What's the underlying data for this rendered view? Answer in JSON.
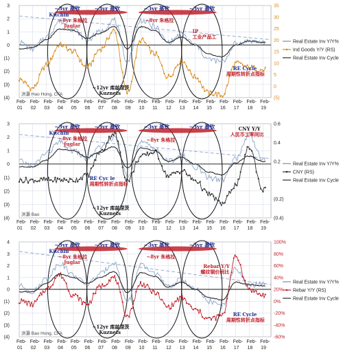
{
  "x_months": [
    "Feb-",
    "Feb-",
    "Feb-",
    "Feb-",
    "Feb-",
    "Feb-",
    "Feb-",
    "Feb-",
    "Feb-",
    "Feb-",
    "Feb-",
    "Feb-",
    "Feb-",
    "Feb-",
    "Feb-",
    "Feb-",
    "Feb-",
    "Feb-",
    "Feb-"
  ],
  "x_years": [
    "01",
    "02",
    "03",
    "04",
    "05",
    "06",
    "07",
    "08",
    "09",
    "10",
    "11",
    "12",
    "13",
    "14",
    "15",
    "16",
    "17",
    "18",
    "19"
  ],
  "colors": {
    "grey": "#6f8fb8",
    "dark": "#2a2a2a",
    "orange": "#d88a1a",
    "red": "#c0202a",
    "dash": "#9aaad0"
  },
  "chart_data": [
    {
      "type": "line",
      "x": [
        2001,
        2002,
        2003,
        2004,
        2005,
        2006,
        2007,
        2008,
        2009,
        2010,
        2011,
        2012,
        2013,
        2014,
        2015,
        2016,
        2017,
        2018,
        2019
      ],
      "yleft": [
        -4,
        -3,
        -2,
        -1,
        0,
        1,
        2,
        3
      ],
      "yleft_labels": [
        "(4)",
        "(3)",
        "(2)",
        "(1)",
        "0",
        "1",
        "2",
        "3"
      ],
      "yright": [
        -5,
        0,
        5,
        10,
        15,
        20,
        25,
        30,
        35
      ],
      "yright_labels": [
        "(5)",
        "0",
        "5",
        "10",
        "15",
        "20",
        "25",
        "30",
        "35"
      ],
      "credit": "洪灝 Hao Hong, CFA",
      "legend": [
        "Real Estate Inv Y/Y%",
        "Ind Goods Y/Y (RS)",
        "Real Estate Inv Cycle"
      ],
      "cycle_labels": [
        "~3yr 基钦",
        "~3yr 基钦",
        "~3yr 基钦",
        "~3yr 基钦"
      ],
      "annotations": {
        "kitchin": "Kitchin",
        "juglar_cn": "~8yr 朱格拉",
        "juglar": "Juglar",
        "kuznets_cn": "~12yr 库兹涅茨",
        "kuznets": "Kuznets",
        "ip_cn": "IP",
        "ip_sub": "工业产品工",
        "re_cycle": "RE Cycle",
        "re_cycle_cn": "周期性转折点指标"
      },
      "series": [
        {
          "name": "Real Estate Inv Y/Y%",
          "values": [
            0.2,
            -0.3,
            0.6,
            1.8,
            1.2,
            0.4,
            1.0,
            1.9,
            -1.2,
            1.9,
            1.4,
            0.2,
            0.8,
            0.0,
            -1.1,
            -1.3,
            0.1,
            0.3,
            0.2
          ]
        },
        {
          "name": "Ind Goods Y/Y (RS)",
          "values": [
            3,
            -1,
            9,
            18,
            15,
            8,
            16,
            24,
            -3,
            20,
            14,
            4,
            11,
            4,
            -3,
            -4,
            10,
            8,
            7
          ]
        },
        {
          "name": "Real Estate Inv Cycle",
          "values": [
            -0.3,
            -0.2,
            0.4,
            1.2,
            1.1,
            0.5,
            0.9,
            1.4,
            -0.3,
            1.4,
            1.1,
            0.2,
            0.6,
            0.0,
            -0.7,
            -0.9,
            0.0,
            0.3,
            0.2
          ]
        }
      ]
    },
    {
      "type": "line",
      "x": [
        2001,
        2002,
        2003,
        2004,
        2005,
        2006,
        2007,
        2008,
        2009,
        2010,
        2011,
        2012,
        2013,
        2014,
        2015,
        2016,
        2017,
        2018,
        2019
      ],
      "yleft": [
        -4,
        -3,
        -2,
        -1,
        0,
        1,
        2,
        3
      ],
      "yleft_labels": [
        "(4)",
        "(3)",
        "(2)",
        "(1)",
        "0",
        "1",
        "2",
        "3"
      ],
      "yright": [
        -0.4,
        -0.2,
        0.0,
        0.2,
        0.4,
        0.6
      ],
      "yright_labels": [
        "(0.4)",
        "(0.2)",
        "",
        "0.2",
        "0.4",
        "0.6"
      ],
      "credit": "洪灝 Bao",
      "legend": [
        "Real Estate Inv Y/Y%",
        "CNY (RS)",
        "Real Estate Inv Cycle"
      ],
      "cycle_labels": [
        "~3yr 基钦",
        "~3yr 基钦",
        "~3yr 基钦",
        "~3yr 基钦"
      ],
      "annotations": {
        "kitchin": "Kitchin",
        "juglar_cn": "~8yr 朱格拉",
        "juglar": "Juglar",
        "kuznets_cn": "~12yr 库兹涅茨",
        "kuznets": "Kuznets",
        "cny": "CNY Y/Y",
        "cny_cn": "人民币工率同比",
        "re_cycle": "RE Cyc le",
        "re_cycle_cn": "周期性转折点指标"
      },
      "series": [
        {
          "name": "Real Estate Inv Y/Y%",
          "values": [
            0.2,
            -0.1,
            0.8,
            1.6,
            1.0,
            0.4,
            1.2,
            2.0,
            -0.8,
            1.6,
            1.2,
            0.2,
            0.6,
            -0.2,
            -1.0,
            -1.2,
            0.4,
            2.2,
            0.3
          ]
        },
        {
          "name": "CNY (RS)",
          "values": [
            0.0,
            0.0,
            0.0,
            0.0,
            0.0,
            0.05,
            0.3,
            0.5,
            0.0,
            0.25,
            0.3,
            0.05,
            0.1,
            0.0,
            -0.15,
            -0.25,
            -0.05,
            0.35,
            -0.1
          ]
        },
        {
          "name": "Real Estate Inv Cycle",
          "values": [
            -0.2,
            -0.2,
            0.3,
            1.1,
            1.0,
            0.5,
            0.9,
            1.3,
            -0.3,
            1.2,
            1.0,
            0.2,
            0.5,
            0.0,
            -0.6,
            -0.8,
            0.1,
            0.6,
            0.2
          ]
        }
      ]
    },
    {
      "type": "line",
      "x": [
        2001,
        2002,
        2003,
        2004,
        2005,
        2006,
        2007,
        2008,
        2009,
        2010,
        2011,
        2012,
        2013,
        2014,
        2015,
        2016,
        2017,
        2018,
        2019
      ],
      "yleft": [
        -4,
        -3,
        -2,
        -1,
        0,
        1,
        2,
        3,
        4
      ],
      "yleft_labels": [
        "(4)",
        "(3)",
        "(2)",
        "(1)",
        "0",
        "1",
        "2",
        "3",
        "4"
      ],
      "yright": [
        -60,
        -40,
        -20,
        0,
        20,
        40,
        60,
        80,
        100
      ],
      "yright_labels": [
        "-60%",
        "-40%",
        "-20%",
        "0%",
        "20%",
        "40%",
        "60%",
        "80%",
        "100%"
      ],
      "credit": "洪灝 Bao Hong, CFA",
      "legend": [
        "Real Estate Inv Y/Y%",
        "Rebar Y/Y (RS)",
        "Real Estate Inv Cycle"
      ],
      "cycle_labels": [
        "~3yr 基钦",
        "~3yr 基钦",
        "~3yr 基钦",
        "~3yr 基钦"
      ],
      "annotations": {
        "kitchin": "Kitchin",
        "juglar_cn": "~8yr 朱格拉",
        "juglar": "Juglar",
        "kuznets_cn": "~12yr 库兹涅茨",
        "kuznets": "Kuznets",
        "rebar": "Rebar Y/Y",
        "rebar_cn": "螺纹钢价同比",
        "re_cycle": "RE Cycle",
        "re_cycle_cn": "周期性转折点指标"
      },
      "series": [
        {
          "name": "Real Estate Inv Y/Y%",
          "values": [
            0.3,
            -0.2,
            0.9,
            2.2,
            1.2,
            0.4,
            1.3,
            2.3,
            -1.0,
            2.0,
            1.4,
            0.2,
            0.8,
            0.0,
            -1.0,
            -1.4,
            1.8,
            0.3,
            0.5
          ]
        },
        {
          "name": "Rebar Y/Y (RS)",
          "values": [
            0,
            -5,
            20,
            45,
            10,
            -5,
            25,
            40,
            -25,
            30,
            15,
            -10,
            5,
            -15,
            -30,
            -25,
            75,
            20,
            10
          ]
        },
        {
          "name": "Real Estate Inv Cycle",
          "values": [
            -0.2,
            -0.2,
            0.5,
            1.3,
            1.0,
            0.5,
            1.0,
            1.5,
            -0.3,
            1.4,
            1.1,
            0.2,
            0.6,
            0.0,
            -0.7,
            -0.9,
            0.6,
            0.4,
            0.3
          ]
        }
      ]
    }
  ]
}
